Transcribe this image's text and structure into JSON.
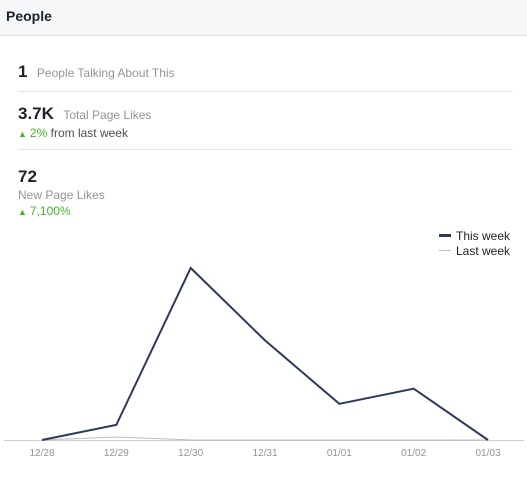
{
  "header": {
    "title": "People"
  },
  "metrics": {
    "talking": {
      "value": "1",
      "label": "People Talking About This"
    },
    "total_likes": {
      "value": "3.7K",
      "label": "Total Page Likes",
      "delta_pct": "2%",
      "delta_text": "from last week"
    },
    "new_likes": {
      "value": "72",
      "label": "New Page Likes",
      "delta_pct": "7,100%"
    }
  },
  "colors": {
    "this_week": "#2d3a5a",
    "last_week": "#bdbdbd",
    "up": "#42b72a"
  },
  "chart_data": {
    "type": "line",
    "categories": [
      "12/28",
      "12/29",
      "12/30",
      "12/31",
      "01/01",
      "01/02",
      "01/03"
    ],
    "series": [
      {
        "name": "This week",
        "values": [
          0,
          5,
          57,
          33,
          12,
          17,
          0
        ]
      },
      {
        "name": "Last week",
        "values": [
          0,
          1,
          0,
          0,
          0,
          0,
          0
        ]
      }
    ],
    "ylim": [
      0,
      60
    ],
    "grid": false,
    "legend": "top-right"
  }
}
